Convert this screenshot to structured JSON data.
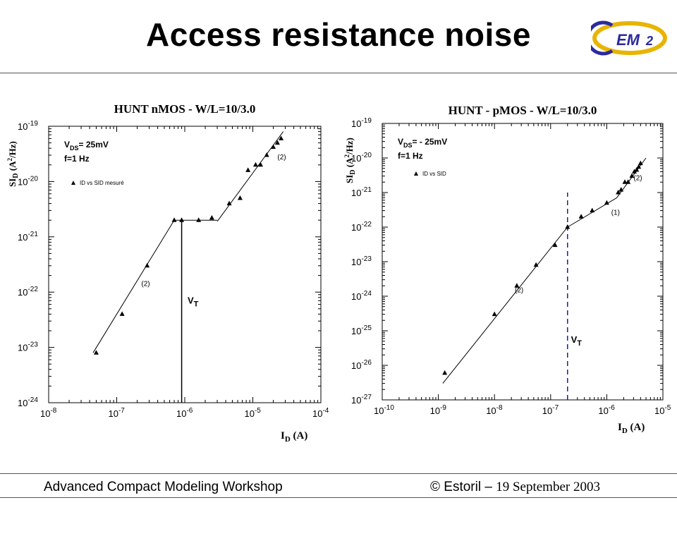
{
  "slide": {
    "title": "Access resistance noise",
    "logo_text": "CEM2",
    "footer_left": "Advanced Compact Modeling Workshop",
    "footer_right_prefix": "© Estoril – ",
    "footer_right_date": "19 September 2003"
  },
  "chart_data": [
    {
      "type": "scatter",
      "title": "HUNT nMOS - W/L=10/3.0",
      "xlabel": "I_D (A)",
      "ylabel": "SI_D (A^2/Hz)",
      "xscale": "log",
      "yscale": "log",
      "xlim": [
        1e-08,
        0.0001
      ],
      "ylim": [
        1e-24,
        1e-19
      ],
      "xticks": [
        -8,
        -7,
        -6,
        -5,
        -4
      ],
      "yticks": [
        -24,
        -23,
        -22,
        -21,
        -20,
        -19
      ],
      "annotations": {
        "vds": "= 25mV",
        "freq": "f=1 Hz",
        "region_low": "(2)",
        "region_high": "(2)",
        "vt": "V_T"
      },
      "legend": {
        "entry": "ID vs SID mesuré",
        "placement": "upper-left"
      },
      "series": [
        {
          "name": "ID vs SID mesuré",
          "x": [
            5e-08,
            1.2e-07,
            2.8e-07,
            7e-07,
            9e-07,
            1.6e-06,
            2.5e-06,
            4.5e-06,
            6.5e-06,
            8.5e-06,
            1.1e-05,
            1.3e-05,
            1.6e-05,
            2e-05,
            2.3e-05,
            2.6e-05
          ],
          "y": [
            8e-24,
            4e-23,
            3e-22,
            2e-21,
            2e-21,
            2e-21,
            2.2e-21,
            4e-21,
            5e-21,
            1.6e-20,
            2e-20,
            2e-20,
            3e-20,
            4.2e-20,
            5e-20,
            6e-20
          ]
        }
      ],
      "fit_lines": [
        {
          "x": [
            4.5e-08,
            7e-07
          ],
          "y": [
            8e-24,
            2e-21
          ]
        },
        {
          "x": [
            7e-07,
            3e-06
          ],
          "y": [
            2e-21,
            2e-21
          ]
        },
        {
          "x": [
            3e-06,
            2.8e-05
          ],
          "y": [
            1.9e-21,
            8e-20
          ]
        }
      ],
      "vt_line": {
        "x": 9e-07,
        "y": [
          1e-24,
          2e-21
        ],
        "style": "solid"
      }
    },
    {
      "type": "scatter",
      "title": "HUNT - pMOS - W/L=10/3.0",
      "xlabel": "I_D (A)",
      "ylabel": "SI_D (A^2/Hz)",
      "xscale": "log",
      "yscale": "log",
      "xlim": [
        1e-10,
        1e-05
      ],
      "ylim": [
        1e-27,
        1e-19
      ],
      "xticks": [
        -10,
        -9,
        -8,
        -7,
        -6,
        -5
      ],
      "yticks": [
        -27,
        -26,
        -25,
        -24,
        -23,
        -22,
        -21,
        -20,
        -19
      ],
      "annotations": {
        "vds": "= - 25mV",
        "freq": "f=1 Hz",
        "region_low": "(2)",
        "region_mid": "(1)",
        "region_high": "(2)",
        "vt": "V_T"
      },
      "legend": {
        "entry": "ID vs SID",
        "placement": "upper-left"
      },
      "series": [
        {
          "name": "ID vs SID",
          "x": [
            1.3e-09,
            1e-08,
            2.5e-08,
            5.5e-08,
            1.2e-07,
            2e-07,
            3.5e-07,
            5.5e-07,
            1e-06,
            1.6e-06,
            1.8e-06,
            2.1e-06,
            2.4e-06,
            2.8e-06,
            3.1e-06,
            3.4e-06,
            3.7e-06,
            4e-06
          ],
          "y": [
            6e-27,
            3e-25,
            2e-24,
            8e-24,
            3e-23,
            1e-22,
            2e-22,
            3e-22,
            5e-22,
            1e-21,
            1.2e-21,
            2e-21,
            2e-21,
            3e-21,
            4e-21,
            4.5e-21,
            5.5e-21,
            7e-21
          ]
        }
      ],
      "fit_lines": [
        {
          "x": [
            1.2e-09,
            2e-07
          ],
          "y": [
            3e-27,
            1e-22
          ]
        },
        {
          "x": [
            2e-07,
            1.5e-06
          ],
          "y": [
            1e-22,
            7e-22
          ]
        },
        {
          "x": [
            1.5e-06,
            5e-06
          ],
          "y": [
            7e-22,
            1e-20
          ]
        }
      ],
      "vt_line": {
        "x": 2e-07,
        "y": [
          1e-27,
          1e-21
        ],
        "style": "dashed",
        "color": "#1a1ab0"
      }
    }
  ]
}
